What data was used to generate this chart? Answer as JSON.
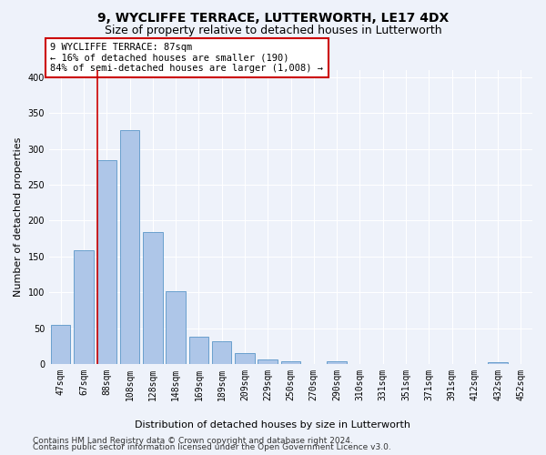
{
  "title": "9, WYCLIFFE TERRACE, LUTTERWORTH, LE17 4DX",
  "subtitle": "Size of property relative to detached houses in Lutterworth",
  "xlabel": "Distribution of detached houses by size in Lutterworth",
  "ylabel": "Number of detached properties",
  "categories": [
    "47sqm",
    "67sqm",
    "88sqm",
    "108sqm",
    "128sqm",
    "148sqm",
    "169sqm",
    "189sqm",
    "209sqm",
    "229sqm",
    "250sqm",
    "270sqm",
    "290sqm",
    "310sqm",
    "331sqm",
    "351sqm",
    "371sqm",
    "391sqm",
    "412sqm",
    "432sqm",
    "452sqm"
  ],
  "values": [
    55,
    159,
    284,
    326,
    184,
    102,
    38,
    32,
    15,
    6,
    4,
    0,
    4,
    0,
    0,
    0,
    0,
    0,
    0,
    3,
    0
  ],
  "bar_color": "#aec6e8",
  "bar_edge_color": "#5a96c8",
  "annotation_text": "9 WYCLIFFE TERRACE: 87sqm\n← 16% of detached houses are smaller (190)\n84% of semi-detached houses are larger (1,008) →",
  "annotation_box_color": "#ffffff",
  "annotation_box_edge_color": "#cc0000",
  "red_line_bar_index": 2,
  "ylim": [
    0,
    410
  ],
  "yticks": [
    0,
    50,
    100,
    150,
    200,
    250,
    300,
    350,
    400
  ],
  "footer1": "Contains HM Land Registry data © Crown copyright and database right 2024.",
  "footer2": "Contains public sector information licensed under the Open Government Licence v3.0.",
  "background_color": "#eef2fa",
  "grid_color": "#ffffff",
  "title_fontsize": 10,
  "subtitle_fontsize": 9,
  "axis_label_fontsize": 8,
  "tick_fontsize": 7,
  "footer_fontsize": 6.5
}
